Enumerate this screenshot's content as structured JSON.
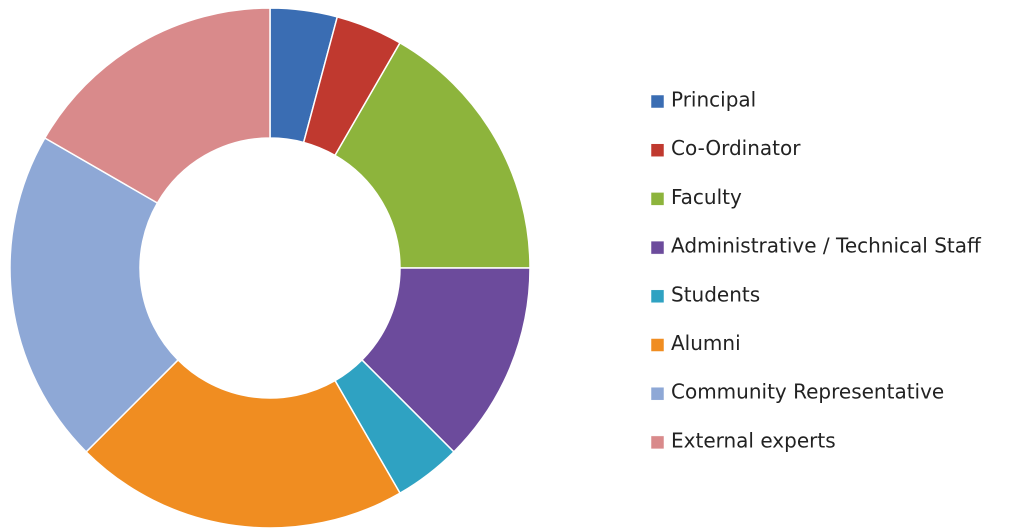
{
  "chart_data": {
    "type": "donut",
    "categories": [
      "Principal",
      "Co-Ordinator",
      "Faculty",
      "Administrative / Technical Staff",
      "Students",
      "Alumni",
      "Community Representative",
      "External experts"
    ],
    "values": [
      1,
      1,
      4,
      3,
      1,
      5,
      5,
      4
    ],
    "colors": [
      "#3a6db3",
      "#c0392f",
      "#8db43c",
      "#6c4b9c",
      "#2fa2c2",
      "#f08d21",
      "#8ea8d6",
      "#d98a8b"
    ],
    "legend": "right"
  }
}
